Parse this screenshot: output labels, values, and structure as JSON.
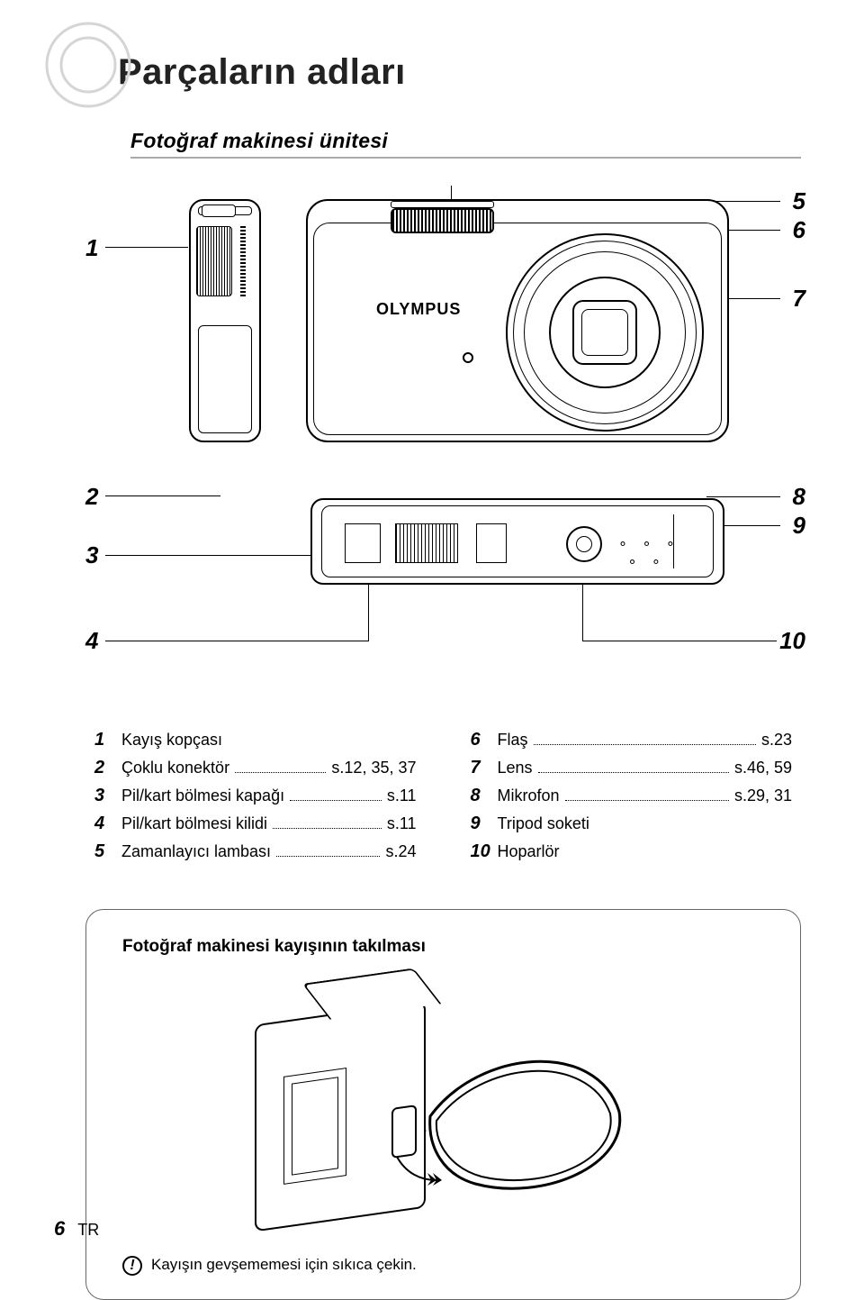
{
  "title": "Parçaların adları",
  "subtitle": "Fotoğraf makinesi ünitesi",
  "brand": "OLYMPUS",
  "callouts_left": [
    "1",
    "2",
    "3",
    "4"
  ],
  "callouts_right": [
    "5",
    "6",
    "7",
    "8",
    "9",
    "10"
  ],
  "parts_left": [
    {
      "n": "1",
      "name": "Kayış kopçası",
      "page": ""
    },
    {
      "n": "2",
      "name": "Çoklu konektör",
      "page": "s.12, 35, 37"
    },
    {
      "n": "3",
      "name": "Pil/kart bölmesi kapağı",
      "page": "s.11"
    },
    {
      "n": "4",
      "name": "Pil/kart bölmesi kilidi",
      "page": "s.11"
    },
    {
      "n": "5",
      "name": "Zamanlayıcı lambası",
      "page": "s.24"
    }
  ],
  "parts_right": [
    {
      "n": "6",
      "name": "Flaş",
      "page": "s.23"
    },
    {
      "n": "7",
      "name": "Lens",
      "page": "s.46, 59"
    },
    {
      "n": "8",
      "name": "Mikrofon",
      "page": "s.29, 31"
    },
    {
      "n": "9",
      "name": "Tripod soketi",
      "page": ""
    },
    {
      "n": "10",
      "name": "Hoparlör",
      "page": ""
    }
  ],
  "strap_title": "Fotoğraf makinesi kayışının takılması",
  "strap_note": "Kayışın gevşememesi için sıkıca çekin.",
  "footer_page": "6",
  "footer_lang": "TR"
}
